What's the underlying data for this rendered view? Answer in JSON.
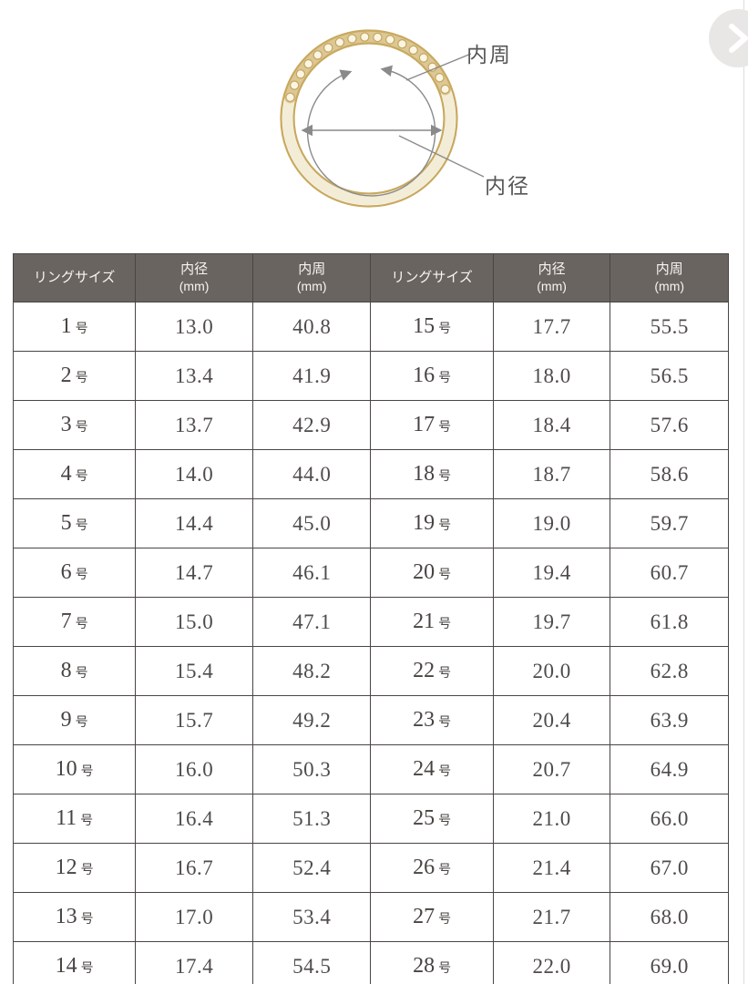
{
  "diagram": {
    "inner_circumference_label": "内周",
    "inner_diameter_label": "内径"
  },
  "next_button": {
    "icon": "chevron-right"
  },
  "table": {
    "headers": {
      "size": "リングサイズ",
      "inner_diameter": "内径",
      "inner_circumference": "内周",
      "unit": "(mm)"
    },
    "size_suffix": "号",
    "left_rows": [
      {
        "size": "1",
        "inner_diameter": "13.0",
        "inner_circumference": "40.8"
      },
      {
        "size": "2",
        "inner_diameter": "13.4",
        "inner_circumference": "41.9"
      },
      {
        "size": "3",
        "inner_diameter": "13.7",
        "inner_circumference": "42.9"
      },
      {
        "size": "4",
        "inner_diameter": "14.0",
        "inner_circumference": "44.0"
      },
      {
        "size": "5",
        "inner_diameter": "14.4",
        "inner_circumference": "45.0"
      },
      {
        "size": "6",
        "inner_diameter": "14.7",
        "inner_circumference": "46.1"
      },
      {
        "size": "7",
        "inner_diameter": "15.0",
        "inner_circumference": "47.1"
      },
      {
        "size": "8",
        "inner_diameter": "15.4",
        "inner_circumference": "48.2"
      },
      {
        "size": "9",
        "inner_diameter": "15.7",
        "inner_circumference": "49.2"
      },
      {
        "size": "10",
        "inner_diameter": "16.0",
        "inner_circumference": "50.3"
      },
      {
        "size": "11",
        "inner_diameter": "16.4",
        "inner_circumference": "51.3"
      },
      {
        "size": "12",
        "inner_diameter": "16.7",
        "inner_circumference": "52.4"
      },
      {
        "size": "13",
        "inner_diameter": "17.0",
        "inner_circumference": "53.4"
      },
      {
        "size": "14",
        "inner_diameter": "17.4",
        "inner_circumference": "54.5"
      }
    ],
    "right_rows": [
      {
        "size": "15",
        "inner_diameter": "17.7",
        "inner_circumference": "55.5"
      },
      {
        "size": "16",
        "inner_diameter": "18.0",
        "inner_circumference": "56.5"
      },
      {
        "size": "17",
        "inner_diameter": "18.4",
        "inner_circumference": "57.6"
      },
      {
        "size": "18",
        "inner_diameter": "18.7",
        "inner_circumference": "58.6"
      },
      {
        "size": "19",
        "inner_diameter": "19.0",
        "inner_circumference": "59.7"
      },
      {
        "size": "20",
        "inner_diameter": "19.4",
        "inner_circumference": "60.7"
      },
      {
        "size": "21",
        "inner_diameter": "19.7",
        "inner_circumference": "61.8"
      },
      {
        "size": "22",
        "inner_diameter": "20.0",
        "inner_circumference": "62.8"
      },
      {
        "size": "23",
        "inner_diameter": "20.4",
        "inner_circumference": "63.9"
      },
      {
        "size": "24",
        "inner_diameter": "20.7",
        "inner_circumference": "64.9"
      },
      {
        "size": "25",
        "inner_diameter": "21.0",
        "inner_circumference": "66.0"
      },
      {
        "size": "26",
        "inner_diameter": "21.4",
        "inner_circumference": "67.0"
      },
      {
        "size": "27",
        "inner_diameter": "21.7",
        "inner_circumference": "68.0"
      },
      {
        "size": "28",
        "inner_diameter": "22.0",
        "inner_circumference": "69.0"
      }
    ]
  },
  "colors": {
    "header_bg": "#6a6460",
    "header_text": "#f7f4f2",
    "size_cell_bg": "#f3dff0",
    "border": "#4a4545",
    "value_text": "#4f4b4b",
    "gold": "#c8a95e",
    "diagram_line": "#8a8a8a"
  }
}
